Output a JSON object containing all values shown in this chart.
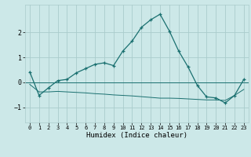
{
  "xlabel": "Humidex (Indice chaleur)",
  "bg_color": "#cce8e8",
  "grid_color": "#aacccc",
  "line_color": "#1a7070",
  "xlim": [
    -0.5,
    23.5
  ],
  "ylim": [
    -1.6,
    3.1
  ],
  "yticks": [
    -1,
    0,
    1,
    2
  ],
  "xticks": [
    0,
    1,
    2,
    3,
    4,
    5,
    6,
    7,
    8,
    9,
    10,
    11,
    12,
    13,
    14,
    15,
    16,
    17,
    18,
    19,
    20,
    21,
    22,
    23
  ],
  "curve1_x": [
    0,
    1,
    2,
    3,
    4,
    5,
    6,
    7,
    8,
    9,
    10,
    11,
    12,
    13,
    14,
    15,
    16,
    17,
    18,
    19,
    20,
    21,
    22,
    23
  ],
  "curve1_y": [
    0.42,
    -0.52,
    -0.22,
    0.07,
    0.12,
    0.38,
    0.55,
    0.72,
    0.78,
    0.67,
    1.25,
    1.65,
    2.2,
    2.5,
    2.72,
    2.05,
    1.25,
    0.62,
    -0.12,
    -0.58,
    -0.62,
    -0.82,
    -0.52,
    0.12
  ],
  "curve2_x": [
    0,
    1,
    2,
    3,
    4,
    5,
    6,
    7,
    8,
    9,
    10,
    11,
    12,
    13,
    14,
    15,
    16,
    17,
    18,
    19,
    20,
    21,
    22,
    23
  ],
  "curve2_y": [
    -0.08,
    -0.38,
    -0.38,
    -0.36,
    -0.38,
    -0.4,
    -0.42,
    -0.45,
    -0.47,
    -0.5,
    -0.52,
    -0.54,
    -0.57,
    -0.6,
    -0.63,
    -0.63,
    -0.64,
    -0.66,
    -0.68,
    -0.7,
    -0.7,
    -0.72,
    -0.52,
    -0.28
  ],
  "font_family": "monospace"
}
